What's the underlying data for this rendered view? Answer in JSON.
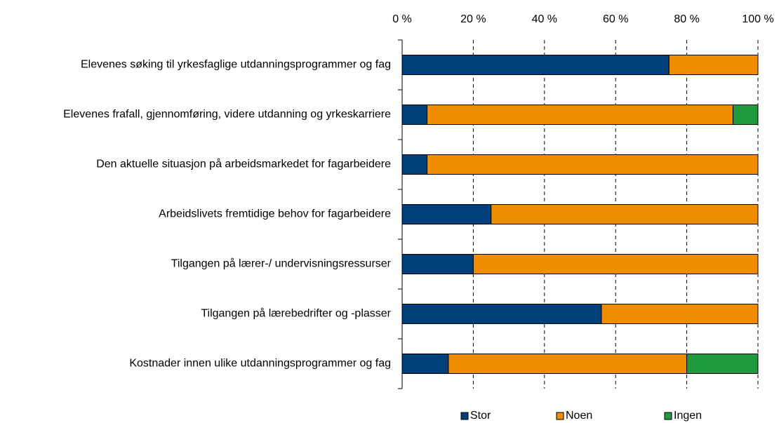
{
  "chart_data": {
    "type": "stacked_barh",
    "categories": [
      "Elevenes søking til yrkesfaglige utdanningsprogrammer og fag",
      "Elevenes frafall, gjennomføring, videre utdanning og yrkeskarriere",
      "Den aktuelle situasjon på arbeidsmarkedet for fagarbeidere",
      "Arbeidslivets fremtidige behov for fagarbeidere",
      "Tilgangen på lærer-/ undervisningsressurser",
      "Tilgangen på lærebedrifter og -plasser",
      "Kostnader innen ulike utdanningsprogrammer og fag"
    ],
    "series": [
      {
        "name": "Stor",
        "color": "#003f7a",
        "values": [
          75,
          7,
          7,
          25,
          20,
          56,
          13
        ]
      },
      {
        "name": "Noen",
        "color": "#f08c00",
        "values": [
          25,
          86,
          93,
          75,
          80,
          44,
          67
        ]
      },
      {
        "name": "Ingen",
        "color": "#1f9a3c",
        "values": [
          0,
          7,
          0,
          0,
          0,
          0,
          20
        ]
      }
    ],
    "xlim": [
      0,
      100
    ],
    "xticks": [
      {
        "value": 0,
        "label": "0 %"
      },
      {
        "value": 20,
        "label": "20 %"
      },
      {
        "value": 40,
        "label": "40 %"
      },
      {
        "value": 60,
        "label": "60 %"
      },
      {
        "value": 80,
        "label": "80 %"
      },
      {
        "value": 100,
        "label": "100 %"
      }
    ],
    "grid": true,
    "legend": "bottom"
  }
}
